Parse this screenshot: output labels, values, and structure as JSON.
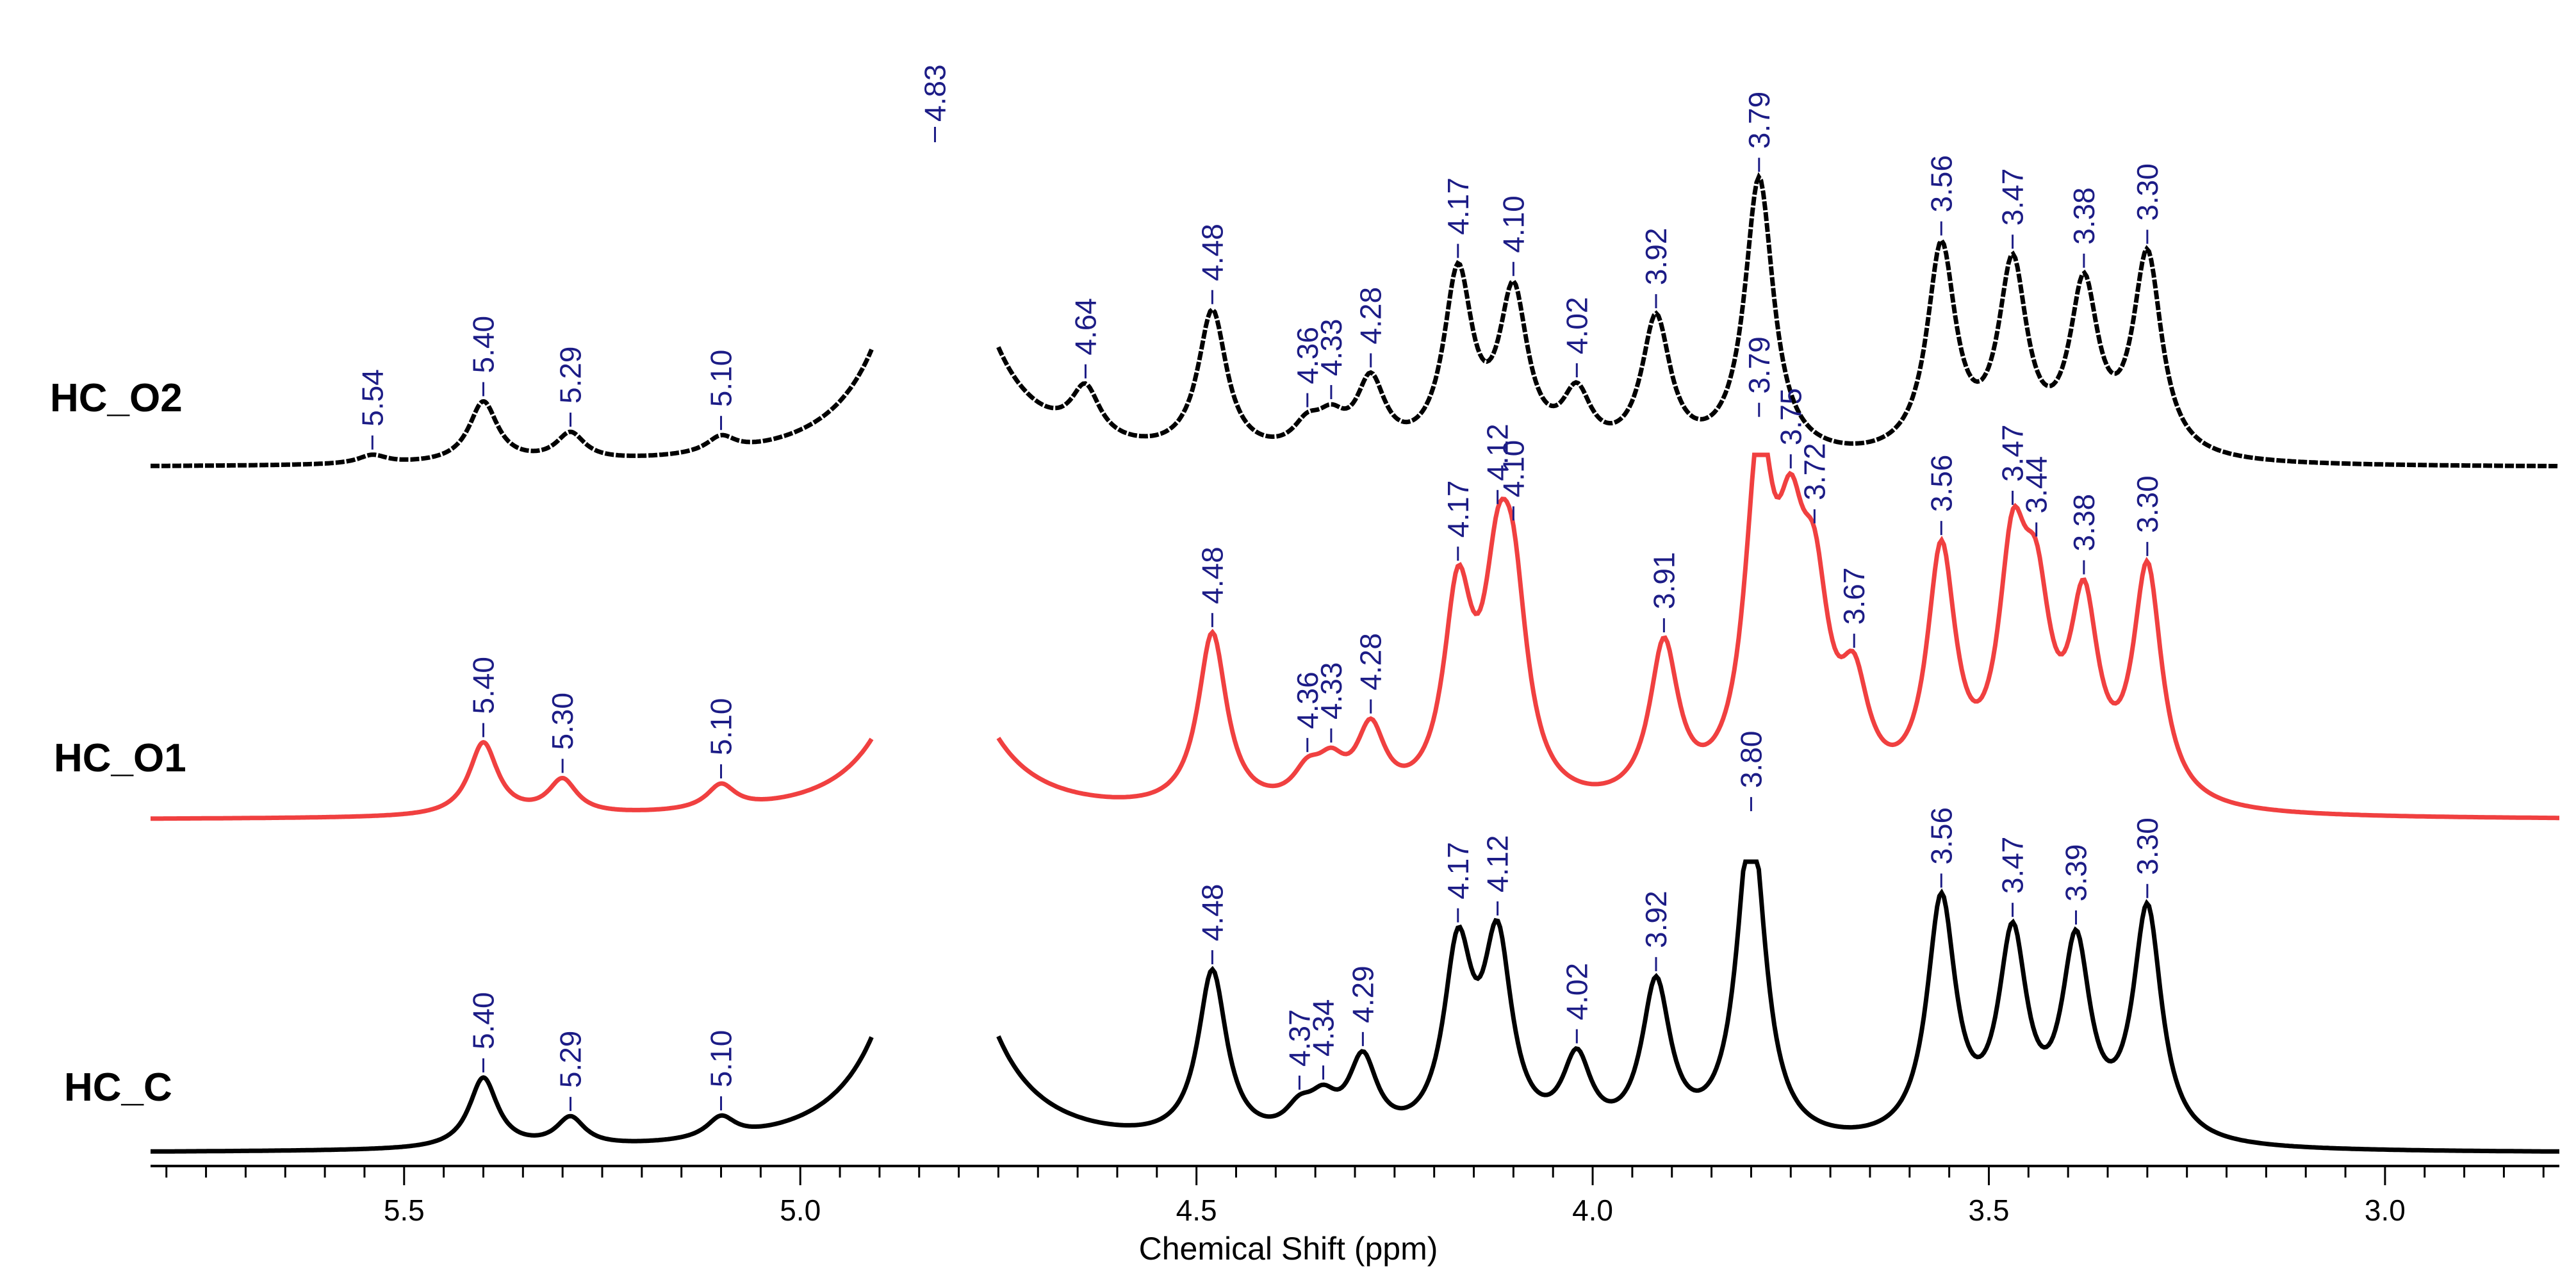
{
  "chart_data": {
    "type": "line",
    "title": "",
    "xlabel": "Chemical Shift (ppm)",
    "ylabel": "",
    "xlim": [
      5.82,
      2.78
    ],
    "x_ticks": [
      "5.5",
      "5.0",
      "4.5",
      "4.0",
      "3.5",
      "3.0"
    ],
    "x_tick_values": [
      5.5,
      5.0,
      4.5,
      4.0,
      3.5,
      3.0
    ],
    "colors": {
      "HC_O2": "#000000",
      "HC_O1": "#f04040",
      "HC_C": "#000000",
      "peak_label": "#1c1c86"
    },
    "series": [
      {
        "name": "HC_O2",
        "color": "#000000",
        "water_peak_label": "4.83",
        "peaks": [
          {
            "ppm": 5.54,
            "label": "5.54",
            "h": 0.012
          },
          {
            "ppm": 5.4,
            "label": "5.40",
            "h": 0.085
          },
          {
            "ppm": 5.29,
            "label": "5.29",
            "h": 0.038
          },
          {
            "ppm": 5.1,
            "label": "5.10",
            "h": 0.022
          },
          {
            "ppm": 4.64,
            "label": "4.64",
            "h": 0.07
          },
          {
            "ppm": 4.48,
            "label": "4.48",
            "h": 0.2
          },
          {
            "ppm": 4.36,
            "label": "4.36",
            "h": 0.035
          },
          {
            "ppm": 4.33,
            "label": "4.33",
            "h": 0.04
          },
          {
            "ppm": 4.28,
            "label": "4.28",
            "h": 0.1
          },
          {
            "ppm": 4.17,
            "label": "4.17",
            "h": 0.25
          },
          {
            "ppm": 4.1,
            "label": "4.10",
            "h": 0.22
          },
          {
            "ppm": 4.02,
            "label": "4.02",
            "h": 0.08
          },
          {
            "ppm": 3.92,
            "label": "3.92",
            "h": 0.19
          },
          {
            "ppm": 3.79,
            "label": "3.79",
            "h": 0.39
          },
          {
            "ppm": 3.56,
            "label": "3.56",
            "h": 0.29
          },
          {
            "ppm": 3.47,
            "label": "3.47",
            "h": 0.26
          },
          {
            "ppm": 3.38,
            "label": "3.38",
            "h": 0.23
          },
          {
            "ppm": 3.3,
            "label": "3.30",
            "h": 0.28
          }
        ]
      },
      {
        "name": "HC_O1",
        "color": "#f04040",
        "peaks": [
          {
            "ppm": 5.4,
            "label": "5.40",
            "h": 0.15
          },
          {
            "ppm": 5.3,
            "label": "5.30",
            "h": 0.07
          },
          {
            "ppm": 5.1,
            "label": "5.10",
            "h": 0.05
          },
          {
            "ppm": 4.48,
            "label": "4.48",
            "h": 0.36
          },
          {
            "ppm": 4.36,
            "label": "4.36",
            "h": 0.06
          },
          {
            "ppm": 4.33,
            "label": "4.33",
            "h": 0.07
          },
          {
            "ppm": 4.28,
            "label": "4.28",
            "h": 0.15
          },
          {
            "ppm": 4.17,
            "label": "4.17",
            "h": 0.41
          },
          {
            "ppm": 4.12,
            "label": "4.12",
            "h": 0.36
          },
          {
            "ppm": 4.1,
            "label": "4.10",
            "h": 0.35
          },
          {
            "ppm": 3.91,
            "label": "3.91",
            "h": 0.32
          },
          {
            "ppm": 3.79,
            "label": "3.79",
            "h": 0.66
          },
          {
            "ppm": 3.75,
            "label": "3.75",
            "h": 0.4
          },
          {
            "ppm": 3.72,
            "label": "3.72",
            "h": 0.34
          },
          {
            "ppm": 3.67,
            "label": "3.67",
            "h": 0.2
          },
          {
            "ppm": 3.56,
            "label": "3.56",
            "h": 0.5
          },
          {
            "ppm": 3.47,
            "label": "3.47",
            "h": 0.45
          },
          {
            "ppm": 3.44,
            "label": "3.44",
            "h": 0.33
          },
          {
            "ppm": 3.38,
            "label": "3.38",
            "h": 0.38
          },
          {
            "ppm": 3.3,
            "label": "3.30",
            "h": 0.48
          }
        ]
      },
      {
        "name": "HC_C",
        "color": "#000000",
        "peaks": [
          {
            "ppm": 5.4,
            "label": "5.40",
            "h": 0.1
          },
          {
            "ppm": 5.29,
            "label": "5.29",
            "h": 0.04
          },
          {
            "ppm": 5.1,
            "label": "5.10",
            "h": 0.03
          },
          {
            "ppm": 4.48,
            "label": "4.48",
            "h": 0.24
          },
          {
            "ppm": 4.37,
            "label": "4.37",
            "h": 0.035
          },
          {
            "ppm": 4.34,
            "label": "4.34",
            "h": 0.045
          },
          {
            "ppm": 4.29,
            "label": "4.29",
            "h": 0.11
          },
          {
            "ppm": 4.17,
            "label": "4.17",
            "h": 0.26
          },
          {
            "ppm": 4.12,
            "label": "4.12",
            "h": 0.27
          },
          {
            "ppm": 4.02,
            "label": "4.02",
            "h": 0.11
          },
          {
            "ppm": 3.92,
            "label": "3.92",
            "h": 0.22
          },
          {
            "ppm": 3.8,
            "label": "3.80",
            "h": 0.46
          },
          {
            "ppm": 3.56,
            "label": "3.56",
            "h": 0.34
          },
          {
            "ppm": 3.47,
            "label": "3.47",
            "h": 0.28
          },
          {
            "ppm": 3.39,
            "label": "3.39",
            "h": 0.27
          },
          {
            "ppm": 3.3,
            "label": "3.30",
            "h": 0.33
          }
        ]
      }
    ]
  }
}
